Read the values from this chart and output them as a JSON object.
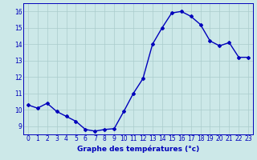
{
  "hours": [
    0,
    1,
    2,
    3,
    4,
    5,
    6,
    7,
    8,
    9,
    10,
    11,
    12,
    13,
    14,
    15,
    16,
    17,
    18,
    19,
    20,
    21,
    22,
    23
  ],
  "temps": [
    10.3,
    10.1,
    10.4,
    9.9,
    9.6,
    9.3,
    8.8,
    8.7,
    8.8,
    8.85,
    9.9,
    11.0,
    11.9,
    14.0,
    15.0,
    15.9,
    16.0,
    15.7,
    15.2,
    14.2,
    13.9,
    14.1,
    13.2,
    13.2
  ],
  "line_color": "#0000bb",
  "marker": "D",
  "marker_size": 2.0,
  "bg_color": "#cce8e8",
  "grid_color": "#aacccc",
  "xlabel": "Graphe des températures (°c)",
  "xlabel_color": "#0000bb",
  "xlabel_fontsize": 6.5,
  "xlabel_fontweight": "bold",
  "tick_color": "#0000bb",
  "ylim": [
    8.5,
    16.5
  ],
  "xlim": [
    -0.5,
    23.5
  ],
  "yticks": [
    9,
    10,
    11,
    12,
    13,
    14,
    15,
    16
  ],
  "xticks": [
    0,
    1,
    2,
    3,
    4,
    5,
    6,
    7,
    8,
    9,
    10,
    11,
    12,
    13,
    14,
    15,
    16,
    17,
    18,
    19,
    20,
    21,
    22,
    23
  ],
  "tick_fontsize": 5.5,
  "linewidth": 1.0
}
